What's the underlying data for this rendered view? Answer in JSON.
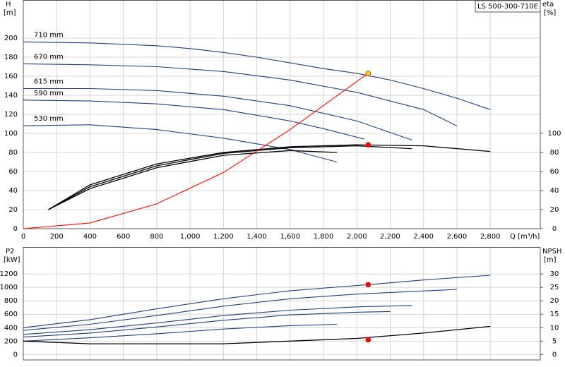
{
  "chart_data": [
    {
      "type": "line",
      "title": "LS 500-300-710E",
      "xlabel": "Q [m³/h]",
      "ylabel": "H",
      "yunit": "[m]",
      "y2label": "eta",
      "y2unit": "[%]",
      "xlim": [
        0,
        3100
      ],
      "ylim": [
        0,
        240
      ],
      "y2lim": [
        0,
        240
      ],
      "grid": true,
      "xticks": [
        0,
        200,
        400,
        600,
        800,
        {
          "value": 1000,
          "label": "1,000"
        },
        {
          "value": 1200,
          "label": "1,200"
        },
        {
          "value": 1400,
          "label": "1,400"
        },
        {
          "value": 1600,
          "label": "1,600"
        },
        {
          "value": 1800,
          "label": "1,800"
        },
        {
          "value": 2000,
          "label": "2,000"
        },
        {
          "value": 2200,
          "label": "2,200"
        },
        {
          "value": 2400,
          "label": "2,400"
        },
        {
          "value": 2600,
          "label": "2,600"
        },
        {
          "value": 2800,
          "label": "2,800"
        }
      ],
      "yticks": [
        0,
        20,
        40,
        60,
        80,
        100,
        120,
        140,
        160,
        180,
        200
      ],
      "y2ticks": [
        0,
        20,
        40,
        60,
        80,
        100
      ],
      "series": [
        {
          "name": "710 mm",
          "color": "#1f3f7a",
          "x": [
            0,
            400,
            800,
            1000,
            1200,
            1400,
            1600,
            1800,
            2000,
            2200,
            2400,
            2600,
            2800
          ],
          "values": [
            196,
            195,
            192,
            189,
            185,
            180,
            174,
            168,
            163,
            156,
            147,
            137,
            125
          ]
        },
        {
          "name": "670 mm",
          "color": "#1f3f7a",
          "x": [
            0,
            400,
            800,
            1200,
            1600,
            2000,
            2400,
            2600
          ],
          "values": [
            173,
            172,
            170,
            165,
            156,
            143,
            125,
            108
          ]
        },
        {
          "name": "615 mm",
          "color": "#1f3f7a",
          "x": [
            0,
            400,
            800,
            1200,
            1600,
            2000,
            2330
          ],
          "values": [
            147,
            147,
            145,
            139,
            129,
            113,
            93
          ]
        },
        {
          "name": "590 mm",
          "color": "#1f3f7a",
          "x": [
            0,
            400,
            800,
            1200,
            1600,
            1800,
            2045
          ],
          "values": [
            135,
            134,
            131,
            125,
            113,
            105,
            94
          ]
        },
        {
          "name": "530 mm",
          "color": "#1f3f7a",
          "x": [
            0,
            400,
            800,
            1200,
            1600,
            1880
          ],
          "values": [
            108,
            109,
            104,
            95,
            83,
            70
          ]
        },
        {
          "color": "#000000",
          "axis": "y2",
          "x": [
            150,
            400,
            800,
            1200,
            1600,
            2000,
            2400,
            2800
          ],
          "values": [
            20,
            46,
            68,
            80,
            86,
            88,
            87,
            81
          ]
        },
        {
          "color": "#000000",
          "axis": "y2",
          "x": [
            150,
            400,
            800,
            1200,
            1600,
            2000,
            2330
          ],
          "values": [
            20,
            44,
            66,
            79,
            85,
            87,
            84
          ]
        },
        {
          "color": "#000000",
          "axis": "y2",
          "x": [
            150,
            400,
            800,
            1200,
            1600,
            1880
          ],
          "values": [
            20,
            42,
            64,
            77,
            82,
            80
          ]
        },
        {
          "color": "#ff0000",
          "x": [
            0,
            400,
            800,
            1200,
            1600,
            2068
          ],
          "values": [
            0,
            6,
            26,
            59,
            104,
            163
          ]
        },
        {
          "color": "#ffd21f",
          "marker": true,
          "x": [
            2068
          ],
          "values": [
            163
          ]
        },
        {
          "color": "#ff0000",
          "marker": true,
          "axis": "y2",
          "x": [
            2068
          ],
          "values": [
            88
          ]
        }
      ]
    },
    {
      "type": "line",
      "ylabel": "P2",
      "yunit": "[kW]",
      "y2label": "NPSH",
      "y2unit": "[m]",
      "xlim": [
        0,
        3100
      ],
      "ylim": [
        -80,
        1600
      ],
      "y2lim": [
        -2,
        40
      ],
      "grid": true,
      "yticks": [
        0,
        200,
        400,
        600,
        800,
        1000,
        1200
      ],
      "y2ticks": [
        0,
        5,
        10,
        15,
        20,
        25,
        30
      ],
      "series": [
        {
          "color": "#1f3f7a",
          "x": [
            0,
            400,
            800,
            1200,
            1600,
            2068,
            2400,
            2800
          ],
          "values": [
            400,
            520,
            680,
            830,
            950,
            1040,
            1110,
            1180
          ]
        },
        {
          "color": "#1f3f7a",
          "x": [
            0,
            400,
            800,
            1200,
            1600,
            2000,
            2600
          ],
          "values": [
            360,
            450,
            580,
            720,
            830,
            900,
            970
          ]
        },
        {
          "color": "#1f3f7a",
          "x": [
            0,
            400,
            800,
            1200,
            1600,
            2000,
            2330
          ],
          "values": [
            300,
            370,
            470,
            580,
            660,
            710,
            730
          ]
        },
        {
          "color": "#1f3f7a",
          "x": [
            0,
            400,
            800,
            1200,
            1600,
            2000,
            2200
          ],
          "values": [
            260,
            320,
            410,
            510,
            590,
            630,
            640
          ]
        },
        {
          "color": "#1f3f7a",
          "x": [
            0,
            400,
            800,
            1200,
            1600,
            1880
          ],
          "values": [
            200,
            250,
            310,
            380,
            430,
            450
          ]
        },
        {
          "color": "#000000",
          "axis": "y2",
          "x": [
            0,
            400,
            800,
            1200,
            1600,
            2000,
            2400,
            2800
          ],
          "values": [
            5,
            4,
            4,
            4,
            5,
            6,
            8,
            10.5
          ]
        },
        {
          "color": "#ff0000",
          "marker": true,
          "x": [
            2068
          ],
          "values": [
            1040
          ]
        },
        {
          "color": "#ff0000",
          "marker": true,
          "axis": "y2",
          "x": [
            2068
          ],
          "values": [
            5.5
          ]
        }
      ]
    }
  ]
}
